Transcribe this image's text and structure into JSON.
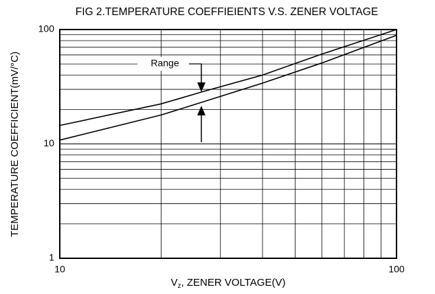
{
  "chart_data": {
    "type": "line",
    "title": "FIG 2.TEMPERATURE COEFFIEIENTS V.S. ZENER VOLTAGE",
    "x_label": {
      "main": "V",
      "subscript": "z",
      "rest": ", ZENER VOLTAGE(V)"
    },
    "y_label": "TEMPERATURE COEFFICIENT(mV/°C)",
    "annotation": "Range",
    "x": [
      10,
      20,
      27,
      40,
      60,
      100
    ],
    "series": [
      {
        "color": "#000000",
        "values": [
          14.5,
          22.4,
          29,
          40,
          61,
          100
        ]
      },
      {
        "color": "#000000",
        "values": [
          10.8,
          17.9,
          23.6,
          34,
          51,
          89
        ]
      }
    ],
    "xscale": "log",
    "yscale": "log",
    "xlim": [
      10,
      100
    ],
    "ylim": [
      1,
      100
    ],
    "xticks": [
      10,
      100
    ],
    "yticks": [
      1,
      10,
      100
    ],
    "xgrid": [
      20,
      30,
      40,
      50,
      60,
      70,
      80,
      90
    ],
    "ygrid": [
      2,
      3,
      4,
      5,
      6,
      7,
      8,
      9,
      20,
      30,
      40,
      50,
      60,
      70,
      80,
      90
    ],
    "grid": true
  }
}
